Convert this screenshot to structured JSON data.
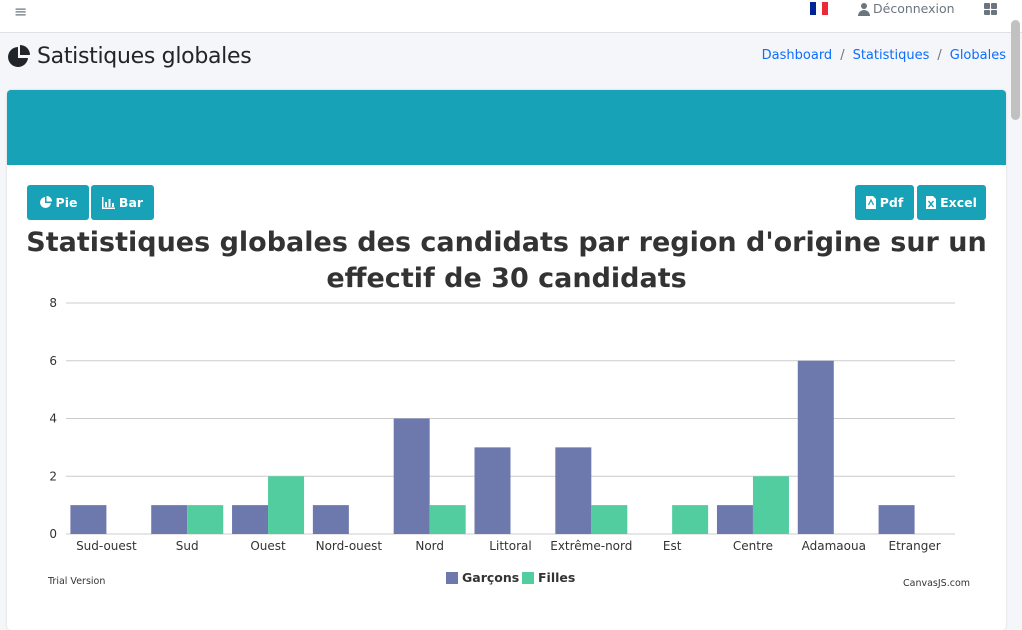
{
  "nav": {
    "menu_icon": "hamburger-icon",
    "flag_colors": [
      "#002395",
      "#ffffff",
      "#ed2939"
    ],
    "logout_label": "Déconnexion",
    "apps_icon": "grid-icon"
  },
  "page": {
    "title": "Satistiques globales",
    "title_icon": "pie-chart-icon"
  },
  "breadcrumb": {
    "items": [
      "Dashboard",
      "Statistiques",
      "Globales"
    ],
    "separator": "/"
  },
  "toolbar": {
    "pie_label": "Pie",
    "bar_label": "Bar",
    "pdf_label": "Pdf",
    "excel_label": "Excel",
    "accent": "#17a2b8"
  },
  "chart_data": {
    "type": "bar",
    "title": "Statistiques globales des candidats par region d'origine sur un effectif de 30 candidats",
    "categories": [
      "Sud-ouest",
      "Sud",
      "Ouest",
      "Nord-ouest",
      "Nord",
      "Littoral",
      "Extrême-nord",
      "Est",
      "Centre",
      "Adamaoua",
      "Etranger"
    ],
    "series": [
      {
        "name": "Garçons",
        "color": "#6d78ad",
        "values": [
          1,
          1,
          1,
          1,
          4,
          3,
          3,
          0,
          1,
          6,
          1
        ]
      },
      {
        "name": "Filles",
        "color": "#51cda0",
        "values": [
          0,
          1,
          2,
          0,
          1,
          0,
          1,
          1,
          2,
          0,
          0
        ]
      }
    ],
    "ylim": [
      0,
      8
    ],
    "yticks": [
      0,
      2,
      4,
      6,
      8
    ],
    "xlabel": "",
    "ylabel": "",
    "grid": true,
    "legend_position": "bottom-center"
  },
  "footer": {
    "trial": "Trial Version",
    "credit": "CanvasJS.com"
  }
}
